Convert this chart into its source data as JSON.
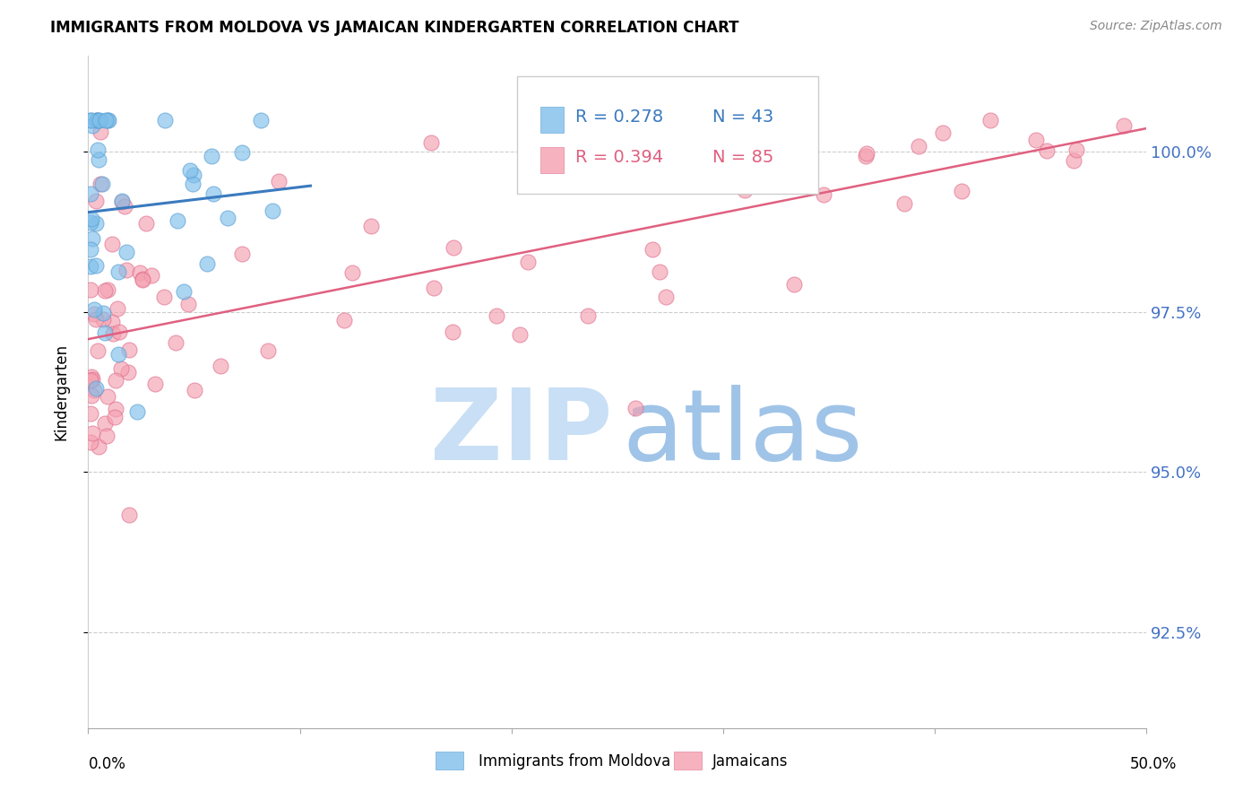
{
  "title": "IMMIGRANTS FROM MOLDOVA VS JAMAICAN KINDERGARTEN CORRELATION CHART",
  "source": "Source: ZipAtlas.com",
  "ylabel": "Kindergarten",
  "ytick_labels": [
    "92.5%",
    "95.0%",
    "97.5%",
    "100.0%"
  ],
  "ytick_values": [
    92.5,
    95.0,
    97.5,
    100.0
  ],
  "xlim": [
    0.0,
    50.0
  ],
  "ylim": [
    91.0,
    101.5
  ],
  "legend_blue_r": "R = 0.278",
  "legend_blue_n": "N = 43",
  "legend_pink_r": "R = 0.394",
  "legend_pink_n": "N = 85",
  "blue_color": "#7fbfea",
  "pink_color": "#f4a0b0",
  "blue_edge_color": "#5a9fd4",
  "pink_edge_color": "#e07090",
  "blue_line_color": "#3a7abf",
  "pink_line_color": "#e06080",
  "tick_label_color": "#4472C4",
  "watermark_zip_color": "#c8dff5",
  "watermark_atlas_color": "#a0c4e8"
}
